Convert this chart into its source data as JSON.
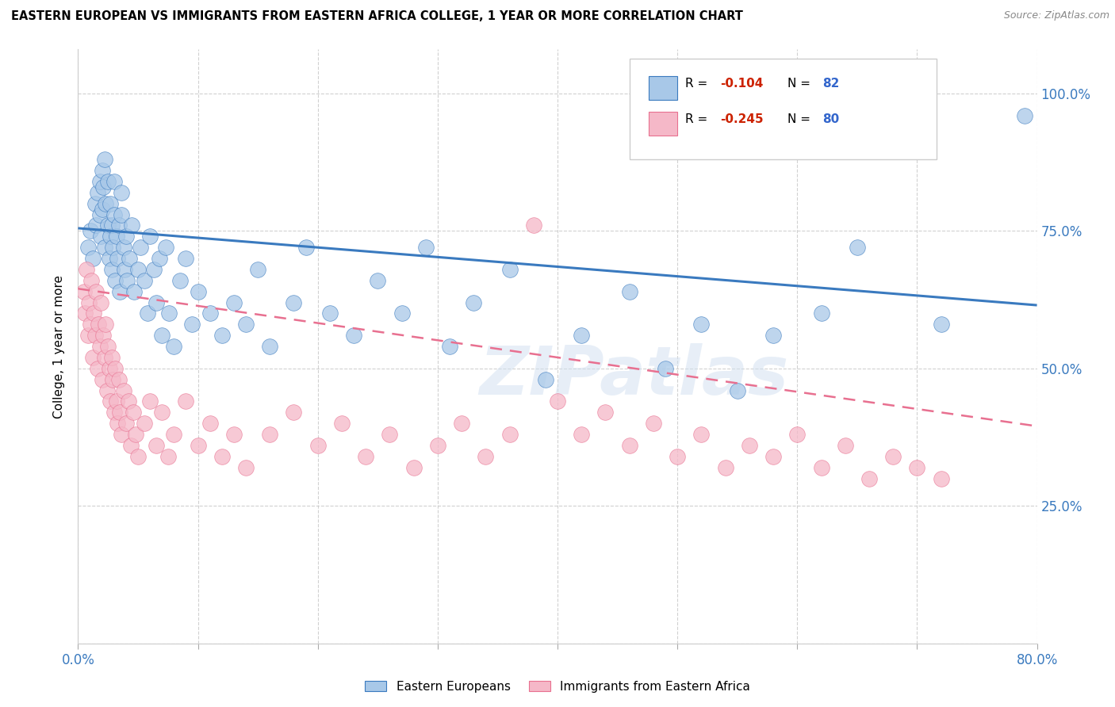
{
  "title": "EASTERN EUROPEAN VS IMMIGRANTS FROM EASTERN AFRICA COLLEGE, 1 YEAR OR MORE CORRELATION CHART",
  "source": "Source: ZipAtlas.com",
  "ylabel": "College, 1 year or more",
  "xlim": [
    0.0,
    0.8
  ],
  "ylim": [
    0.0,
    1.08
  ],
  "R1": -0.104,
  "N1": 82,
  "R2": -0.245,
  "N2": 80,
  "color_blue": "#a8c8e8",
  "color_pink": "#f5b8c8",
  "color_line_blue": "#3a7abf",
  "color_line_pink": "#e87090",
  "blue_line_x0": 0.0,
  "blue_line_y0": 0.755,
  "blue_line_x1": 0.8,
  "blue_line_y1": 0.615,
  "pink_line_x0": 0.0,
  "pink_line_y0": 0.645,
  "pink_line_x1": 0.8,
  "pink_line_y1": 0.395,
  "watermark_text": "ZIPatlas",
  "legend_r1_color": "#cc2200",
  "legend_r2_color": "#cc2200",
  "legend_n_color": "#3366cc",
  "blue_scatter_x": [
    0.008,
    0.01,
    0.012,
    0.014,
    0.015,
    0.016,
    0.018,
    0.018,
    0.019,
    0.02,
    0.02,
    0.021,
    0.022,
    0.022,
    0.023,
    0.025,
    0.025,
    0.026,
    0.027,
    0.027,
    0.028,
    0.028,
    0.029,
    0.03,
    0.03,
    0.031,
    0.032,
    0.033,
    0.034,
    0.035,
    0.036,
    0.036,
    0.038,
    0.039,
    0.04,
    0.041,
    0.043,
    0.045,
    0.047,
    0.05,
    0.052,
    0.055,
    0.058,
    0.06,
    0.063,
    0.065,
    0.068,
    0.07,
    0.073,
    0.076,
    0.08,
    0.085,
    0.09,
    0.095,
    0.1,
    0.11,
    0.12,
    0.13,
    0.14,
    0.15,
    0.16,
    0.18,
    0.19,
    0.21,
    0.23,
    0.25,
    0.27,
    0.29,
    0.31,
    0.33,
    0.36,
    0.39,
    0.42,
    0.46,
    0.49,
    0.52,
    0.55,
    0.58,
    0.62,
    0.65,
    0.72,
    0.79
  ],
  "blue_scatter_y": [
    0.72,
    0.75,
    0.7,
    0.8,
    0.76,
    0.82,
    0.78,
    0.84,
    0.74,
    0.79,
    0.86,
    0.83,
    0.72,
    0.88,
    0.8,
    0.76,
    0.84,
    0.7,
    0.74,
    0.8,
    0.68,
    0.76,
    0.72,
    0.84,
    0.78,
    0.66,
    0.74,
    0.7,
    0.76,
    0.64,
    0.78,
    0.82,
    0.72,
    0.68,
    0.74,
    0.66,
    0.7,
    0.76,
    0.64,
    0.68,
    0.72,
    0.66,
    0.6,
    0.74,
    0.68,
    0.62,
    0.7,
    0.56,
    0.72,
    0.6,
    0.54,
    0.66,
    0.7,
    0.58,
    0.64,
    0.6,
    0.56,
    0.62,
    0.58,
    0.68,
    0.54,
    0.62,
    0.72,
    0.6,
    0.56,
    0.66,
    0.6,
    0.72,
    0.54,
    0.62,
    0.68,
    0.48,
    0.56,
    0.64,
    0.5,
    0.58,
    0.46,
    0.56,
    0.6,
    0.72,
    0.58,
    0.96
  ],
  "pink_scatter_x": [
    0.005,
    0.006,
    0.007,
    0.008,
    0.009,
    0.01,
    0.011,
    0.012,
    0.013,
    0.014,
    0.015,
    0.016,
    0.017,
    0.018,
    0.019,
    0.02,
    0.021,
    0.022,
    0.023,
    0.024,
    0.025,
    0.026,
    0.027,
    0.028,
    0.029,
    0.03,
    0.031,
    0.032,
    0.033,
    0.034,
    0.035,
    0.036,
    0.038,
    0.04,
    0.042,
    0.044,
    0.046,
    0.048,
    0.05,
    0.055,
    0.06,
    0.065,
    0.07,
    0.075,
    0.08,
    0.09,
    0.1,
    0.11,
    0.12,
    0.13,
    0.14,
    0.16,
    0.18,
    0.2,
    0.22,
    0.24,
    0.26,
    0.28,
    0.3,
    0.32,
    0.34,
    0.36,
    0.38,
    0.4,
    0.42,
    0.44,
    0.46,
    0.48,
    0.5,
    0.52,
    0.54,
    0.56,
    0.58,
    0.6,
    0.62,
    0.64,
    0.66,
    0.68,
    0.7,
    0.72
  ],
  "pink_scatter_y": [
    0.64,
    0.6,
    0.68,
    0.56,
    0.62,
    0.58,
    0.66,
    0.52,
    0.6,
    0.56,
    0.64,
    0.5,
    0.58,
    0.54,
    0.62,
    0.48,
    0.56,
    0.52,
    0.58,
    0.46,
    0.54,
    0.5,
    0.44,
    0.52,
    0.48,
    0.42,
    0.5,
    0.44,
    0.4,
    0.48,
    0.42,
    0.38,
    0.46,
    0.4,
    0.44,
    0.36,
    0.42,
    0.38,
    0.34,
    0.4,
    0.44,
    0.36,
    0.42,
    0.34,
    0.38,
    0.44,
    0.36,
    0.4,
    0.34,
    0.38,
    0.32,
    0.38,
    0.42,
    0.36,
    0.4,
    0.34,
    0.38,
    0.32,
    0.36,
    0.4,
    0.34,
    0.38,
    0.76,
    0.44,
    0.38,
    0.42,
    0.36,
    0.4,
    0.34,
    0.38,
    0.32,
    0.36,
    0.34,
    0.38,
    0.32,
    0.36,
    0.3,
    0.34,
    0.32,
    0.3
  ]
}
